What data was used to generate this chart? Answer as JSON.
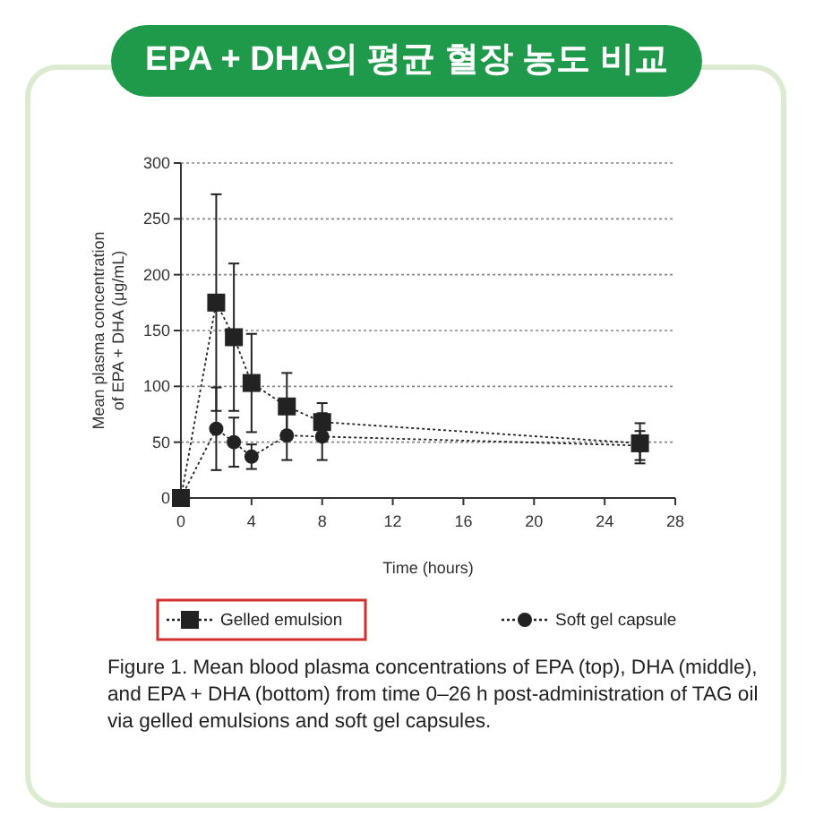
{
  "chart_data": {
    "type": "line",
    "title": "EPA + DHA의 평균 혈장 농도 비교",
    "xlabel": "Time (hours)",
    "ylabel": "Mean plasma concentration of EPA + DHA (μg/mL)",
    "x": [
      0,
      2,
      3,
      4,
      6,
      8,
      26
    ],
    "series": [
      {
        "name": "Gelled emulsion",
        "color": "#222222",
        "marker": "square",
        "line_style": "dotted",
        "values": [
          0,
          175,
          144,
          103,
          82,
          68,
          49
        ],
        "errors": [
          null,
          97,
          66,
          44,
          30,
          17,
          18
        ]
      },
      {
        "name": "Soft gel capsule",
        "color": "#222222",
        "marker": "circle",
        "line_style": "dotted",
        "values": [
          0,
          62,
          50,
          37,
          56,
          55,
          47
        ],
        "errors": [
          null,
          37,
          22,
          11,
          22,
          21,
          13
        ]
      }
    ],
    "xlim": [
      0,
      28
    ],
    "xticks": [
      0,
      4,
      8,
      12,
      16,
      20,
      24,
      28
    ],
    "ylim": [
      0,
      300
    ],
    "yticks": [
      0,
      50,
      100,
      150,
      200,
      250,
      300
    ],
    "grid": "y",
    "legend": "bottom",
    "annotations": [
      "Figure 1. Mean blood plasma concentrations of EPA (top), DHA (middle), and EPA + DHA (bottom) from time 0–26 h post-administration of TAG oil via gelled emulsions and soft gel capsules."
    ]
  }
}
